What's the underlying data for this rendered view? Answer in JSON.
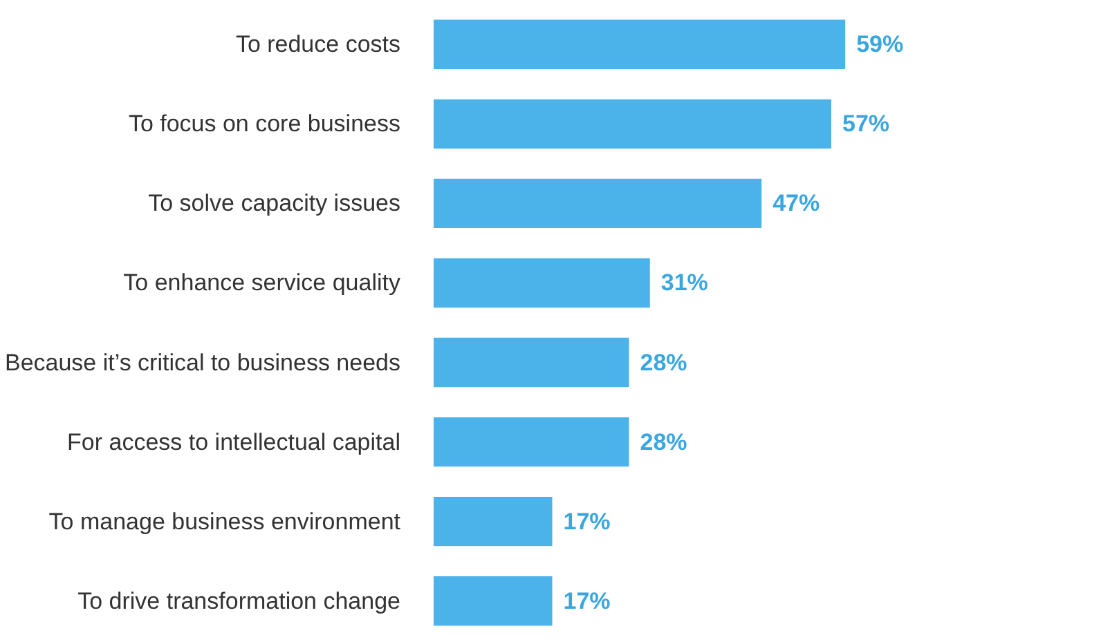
{
  "chart_data": {
    "type": "bar",
    "orientation": "horizontal",
    "categories": [
      "To reduce costs",
      "To focus on core business",
      "To solve capacity issues",
      "To enhance service quality",
      "Because it’s critical to business needs",
      "For access to intellectual capital",
      "To manage business environment",
      "To drive transformation change"
    ],
    "values": [
      59,
      57,
      47,
      31,
      28,
      28,
      17,
      17
    ],
    "value_labels": [
      "59%",
      "57%",
      "47%",
      "31%",
      "28%",
      "28%",
      "17%",
      "17%"
    ],
    "color": "#4cb2ea",
    "tick_labels": "y",
    "grid": false
  }
}
